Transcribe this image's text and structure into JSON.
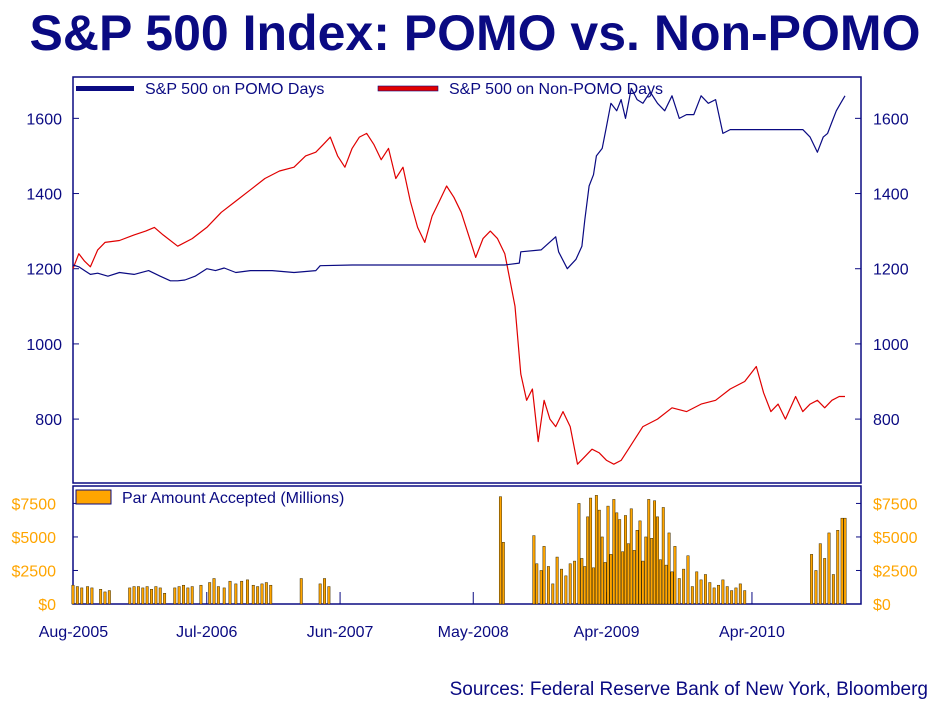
{
  "colors": {
    "title": "#0a0a82",
    "axis": "#0a0a82",
    "pomo": "#0a0a82",
    "non_pomo": "#e00000",
    "bars": "#ffa500",
    "bar_outline": "#3a2a00",
    "bar_tick_labels": "#ffa500"
  },
  "chart_data": [
    {
      "type": "line",
      "title": "S&P 500 Index: POMO vs. Non-POMO",
      "xlabel": "",
      "ylabel": "",
      "xlim": [
        2005.58,
        2011.0
      ],
      "ylim": [
        630,
        1710
      ],
      "y_ticks": [
        800,
        1000,
        1200,
        1400,
        1600
      ],
      "y_tick_labels": [
        "800",
        "1000",
        "1200",
        "1400",
        "1600"
      ],
      "x_ticks": [
        2005.583,
        2006.5,
        2007.417,
        2008.333,
        2009.25,
        2010.25
      ],
      "x_tick_labels": [
        "Aug-2005",
        "Jul-2006",
        "Jun-2007",
        "May-2008",
        "Apr-2009",
        "Apr-2010"
      ],
      "legend": [
        "S&P 500 on POMO Days",
        "S&P 500 on Non-POMO Days"
      ],
      "legend_position": "top-left",
      "grid": false,
      "series": [
        {
          "name": "S&P 500 on POMO Days",
          "x": [
            2005.58,
            2005.62,
            2005.66,
            2005.7,
            2005.75,
            2005.82,
            2005.9,
            2006.0,
            2006.1,
            2006.18,
            2006.25,
            2006.3,
            2006.35,
            2006.42,
            2006.5,
            2006.56,
            2006.62,
            2006.7,
            2006.8,
            2006.95,
            2007.1,
            2007.25,
            2007.28,
            2007.5,
            2007.8,
            2008.1,
            2008.4,
            2008.55,
            2008.65,
            2008.66,
            2008.8,
            2008.9,
            2008.92,
            2008.98,
            2009.04,
            2009.08,
            2009.1,
            2009.13,
            2009.16,
            2009.18,
            2009.22,
            2009.25,
            2009.28,
            2009.32,
            2009.35,
            2009.38,
            2009.42,
            2009.46,
            2009.5,
            2009.55,
            2009.6,
            2009.65,
            2009.7,
            2009.75,
            2009.8,
            2009.85,
            2009.9,
            2009.95,
            2010.0,
            2010.05,
            2010.1,
            2010.2,
            2010.35,
            2010.5,
            2010.6,
            2010.65,
            2010.7,
            2010.74,
            2010.77,
            2010.8,
            2010.83,
            2010.86,
            2010.89
          ],
          "values": [
            1210,
            1205,
            1195,
            1185,
            1188,
            1180,
            1190,
            1185,
            1195,
            1180,
            1168,
            1168,
            1170,
            1180,
            1200,
            1195,
            1202,
            1190,
            1195,
            1195,
            1190,
            1195,
            1208,
            1210,
            1210,
            1210,
            1210,
            1210,
            1215,
            1245,
            1250,
            1285,
            1245,
            1200,
            1225,
            1260,
            1330,
            1420,
            1450,
            1500,
            1520,
            1580,
            1640,
            1620,
            1650,
            1600,
            1680,
            1650,
            1640,
            1670,
            1640,
            1620,
            1660,
            1600,
            1610,
            1610,
            1660,
            1640,
            1650,
            1560,
            1570,
            1570,
            1570,
            1570,
            1570,
            1550,
            1510,
            1550,
            1560,
            1590,
            1620,
            1640,
            1660
          ]
        },
        {
          "name": "S&P 500 on Non-POMO Days",
          "x": [
            2005.58,
            2005.62,
            2005.66,
            2005.7,
            2005.75,
            2005.8,
            2005.9,
            2006.0,
            2006.08,
            2006.14,
            2006.2,
            2006.3,
            2006.4,
            2006.5,
            2006.6,
            2006.7,
            2006.8,
            2006.9,
            2007.0,
            2007.1,
            2007.18,
            2007.25,
            2007.3,
            2007.35,
            2007.4,
            2007.45,
            2007.5,
            2007.55,
            2007.6,
            2007.65,
            2007.7,
            2007.75,
            2007.8,
            2007.85,
            2007.9,
            2007.95,
            2008.0,
            2008.05,
            2008.1,
            2008.15,
            2008.2,
            2008.25,
            2008.3,
            2008.35,
            2008.4,
            2008.45,
            2008.5,
            2008.55,
            2008.58,
            2008.62,
            2008.66,
            2008.7,
            2008.74,
            2008.78,
            2008.82,
            2008.86,
            2008.9,
            2008.95,
            2009.0,
            2009.05,
            2009.1,
            2009.15,
            2009.2,
            2009.25,
            2009.3,
            2009.35,
            2009.4,
            2009.45,
            2009.5,
            2009.6,
            2009.7,
            2009.8,
            2009.9,
            2010.0,
            2010.1,
            2010.2,
            2010.28,
            2010.33,
            2010.38,
            2010.43,
            2010.48,
            2010.55,
            2010.6,
            2010.65,
            2010.7,
            2010.75,
            2010.8,
            2010.85,
            2010.89
          ],
          "values": [
            1200,
            1240,
            1220,
            1205,
            1250,
            1270,
            1275,
            1290,
            1300,
            1310,
            1290,
            1260,
            1280,
            1310,
            1350,
            1380,
            1410,
            1440,
            1460,
            1470,
            1500,
            1510,
            1530,
            1550,
            1500,
            1470,
            1520,
            1550,
            1560,
            1530,
            1490,
            1520,
            1440,
            1470,
            1380,
            1310,
            1270,
            1340,
            1380,
            1420,
            1390,
            1350,
            1290,
            1230,
            1280,
            1300,
            1280,
            1240,
            1180,
            1100,
            920,
            850,
            880,
            740,
            850,
            800,
            780,
            820,
            780,
            680,
            700,
            720,
            710,
            690,
            680,
            690,
            720,
            750,
            780,
            800,
            830,
            820,
            840,
            850,
            880,
            900,
            940,
            870,
            820,
            840,
            800,
            860,
            820,
            840,
            850,
            830,
            850,
            860,
            860
          ]
        }
      ]
    },
    {
      "type": "bar",
      "title": "",
      "xlabel": "",
      "ylabel": "",
      "xlim": [
        2005.58,
        2011.0
      ],
      "ylim": [
        0,
        8800
      ],
      "y_ticks": [
        0,
        2500,
        5000,
        7500
      ],
      "y_tick_labels": [
        "$0",
        "$2500",
        "$5000",
        "$7500"
      ],
      "legend": [
        "Par Amount Accepted (Millions)"
      ],
      "legend_position": "top-left",
      "series": [
        {
          "name": "Par Amount Accepted (Millions)",
          "x": [
            2005.58,
            2005.61,
            2005.64,
            2005.68,
            2005.71,
            2005.77,
            2005.8,
            2005.83,
            2005.97,
            2006.0,
            2006.03,
            2006.06,
            2006.09,
            2006.12,
            2006.15,
            2006.18,
            2006.21,
            2006.28,
            2006.31,
            2006.34,
            2006.37,
            2006.4,
            2006.46,
            2006.52,
            2006.55,
            2006.58,
            2006.62,
            2006.66,
            2006.7,
            2006.74,
            2006.78,
            2006.82,
            2006.85,
            2006.88,
            2006.91,
            2006.94,
            2007.15,
            2007.28,
            2007.31,
            2007.34,
            2008.52,
            2008.54,
            2008.75,
            2008.77,
            2008.8,
            2008.82,
            2008.85,
            2008.88,
            2008.91,
            2008.94,
            2008.97,
            2009.0,
            2009.03,
            2009.06,
            2009.08,
            2009.1,
            2009.12,
            2009.14,
            2009.16,
            2009.18,
            2009.2,
            2009.22,
            2009.24,
            2009.26,
            2009.28,
            2009.3,
            2009.32,
            2009.34,
            2009.36,
            2009.38,
            2009.4,
            2009.42,
            2009.44,
            2009.46,
            2009.48,
            2009.5,
            2009.52,
            2009.54,
            2009.56,
            2009.58,
            2009.6,
            2009.62,
            2009.64,
            2009.66,
            2009.68,
            2009.7,
            2009.72,
            2009.75,
            2009.78,
            2009.81,
            2009.84,
            2009.87,
            2009.9,
            2009.93,
            2009.96,
            2009.99,
            2010.02,
            2010.05,
            2010.08,
            2010.11,
            2010.14,
            2010.17,
            2010.2,
            2010.66,
            2010.69,
            2010.72,
            2010.75,
            2010.78,
            2010.81,
            2010.84,
            2010.87,
            2010.89
          ],
          "values": [
            1400,
            1300,
            1200,
            1300,
            1200,
            1100,
            900,
            1000,
            1200,
            1300,
            1300,
            1200,
            1300,
            1100,
            1300,
            1200,
            800,
            1200,
            1300,
            1400,
            1200,
            1300,
            1400,
            1600,
            1900,
            1300,
            1200,
            1700,
            1500,
            1700,
            1800,
            1400,
            1300,
            1500,
            1600,
            1400,
            1900,
            1500,
            1900,
            1300,
            8000,
            4600,
            5100,
            3000,
            2500,
            4300,
            2800,
            1500,
            3500,
            2600,
            2100,
            3000,
            3200,
            7500,
            3400,
            2800,
            6500,
            7900,
            2700,
            8100,
            7000,
            5000,
            3100,
            7300,
            3700,
            7800,
            6800,
            6300,
            3900,
            6600,
            4500,
            7100,
            4000,
            5500,
            6200,
            3200,
            5000,
            7800,
            4900,
            7700,
            6500,
            3300,
            7200,
            2900,
            5300,
            2400,
            4300,
            1900,
            2600,
            3600,
            1300,
            2400,
            1800,
            2200,
            1600,
            1200,
            1400,
            1800,
            1300,
            1000,
            1200,
            1500,
            1000,
            3700,
            2500,
            4500,
            3400,
            5300,
            2200,
            5500,
            6400,
            6400
          ]
        }
      ]
    }
  ],
  "labels": {
    "title": "S&P 500 Index: POMO vs. Non-POMO",
    "source": "Sources: Federal Reserve Bank of New York, Bloomberg"
  }
}
